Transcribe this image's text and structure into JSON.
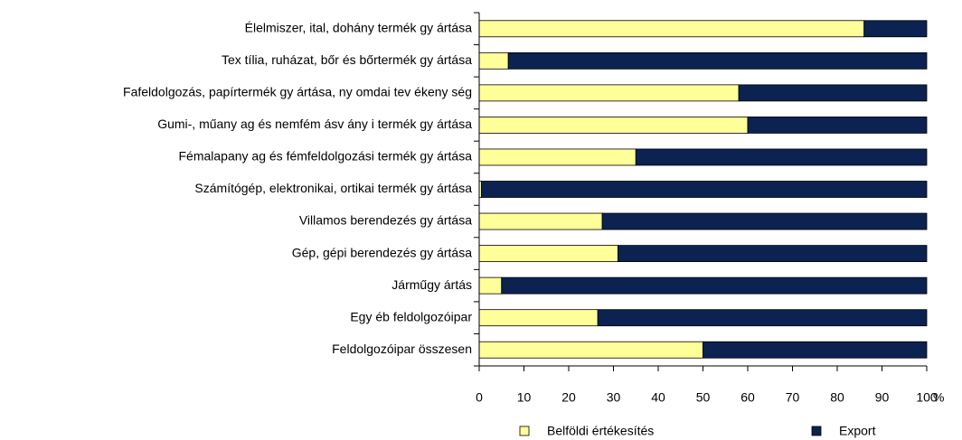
{
  "chart_data": {
    "type": "stacked_barh",
    "categories": [
      "Élelmiszer, ital, dohány termék gy ártása",
      "Tex tília, ruházat, bőr és bőrtermék gy ártása",
      "Fafeldolgozás, papírtermék gy ártása, ny omdai tev ékeny ség",
      "Gumi-, műany ag és nemfém ásv ány i termék gy ártása",
      "Fémalapany ag és fémfeldolgozási termék gy ártása",
      "Számítógép, elektronikai, ortikai termék gy ártása",
      "Villamos berendezés gy ártása",
      "Gép, gépi berendezés gy ártása",
      "Járműgy ártás",
      "Egy éb feldolgozóipar",
      "Feldolgozóipar összesen"
    ],
    "series": [
      {
        "name": "Belföldi értékesítés",
        "color": "#ffff99",
        "values": [
          86,
          6.5,
          58,
          60,
          35,
          0.5,
          27.5,
          31,
          5,
          26.5,
          50
        ]
      },
      {
        "name": "Export",
        "color": "#0c2250",
        "values": [
          14,
          93.5,
          42,
          40,
          65,
          99.5,
          72.5,
          69,
          95,
          73.5,
          50
        ]
      }
    ],
    "xlim": [
      0,
      100
    ],
    "xticks": [
      0,
      10,
      20,
      30,
      40,
      50,
      60,
      70,
      80,
      90,
      100
    ],
    "x_unit": "%",
    "legend": "bottom"
  }
}
